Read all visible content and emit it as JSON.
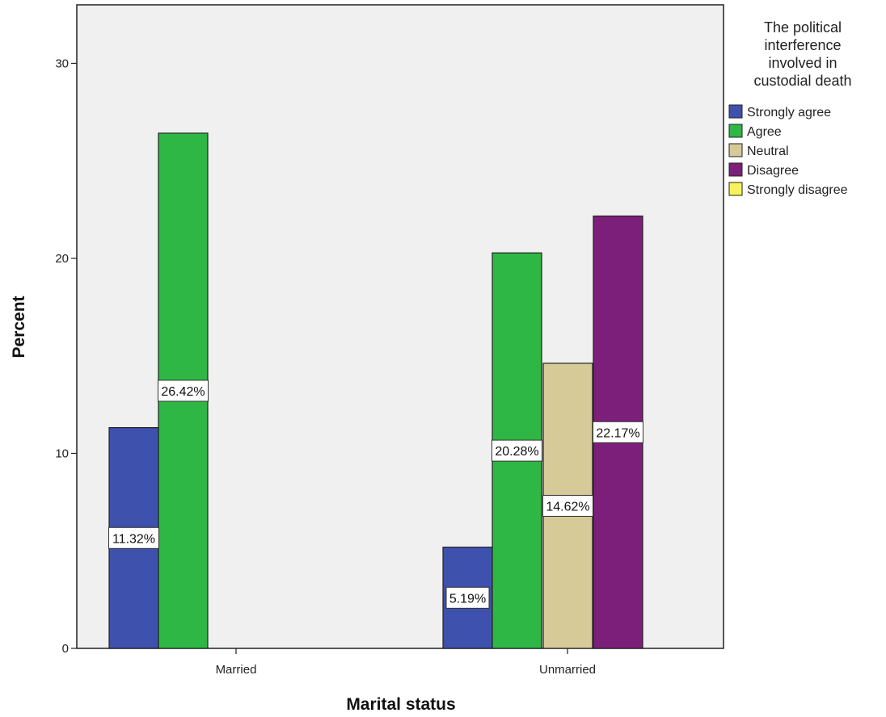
{
  "chart_data": {
    "type": "bar",
    "title": "",
    "xlabel": "Marital status",
    "ylabel": "Percent",
    "ylim": [
      0,
      33
    ],
    "yticks": [
      0,
      10,
      20,
      30
    ],
    "grid": false,
    "plot_background": "#f0f0f0",
    "legend": {
      "title_lines": [
        "The political",
        "interference",
        "involved in",
        "custodial death"
      ],
      "placement": "right"
    },
    "categories": [
      "Married",
      "Unmarried"
    ],
    "series": [
      {
        "name": "Strongly agree",
        "color": "#3e51ad",
        "values": [
          11.32,
          5.19
        ],
        "labels": [
          "11.32%",
          "5.19%"
        ]
      },
      {
        "name": "Agree",
        "color": "#2eb744",
        "values": [
          26.42,
          20.28
        ],
        "labels": [
          "26.42%",
          "20.28%"
        ]
      },
      {
        "name": "Neutral",
        "color": "#d5ca98",
        "values": [
          null,
          14.62
        ],
        "labels": [
          "",
          "14.62%"
        ]
      },
      {
        "name": "Disagree",
        "color": "#7c1f7a",
        "values": [
          null,
          22.17
        ],
        "labels": [
          "",
          "22.17%"
        ]
      },
      {
        "name": "Strongly disagree",
        "color": "#f7f25a",
        "values": [
          null,
          null
        ],
        "labels": [
          "",
          ""
        ]
      }
    ]
  }
}
